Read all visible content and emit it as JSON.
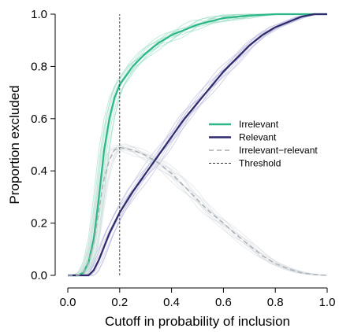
{
  "chart_data": {
    "type": "line",
    "xlabel": "Cutoff in probability of inclusion",
    "ylabel": "Proportion excluded",
    "xlim": [
      0,
      1
    ],
    "ylim": [
      0,
      1
    ],
    "x_ticks": [
      "0.0",
      "0.2",
      "0.4",
      "0.6",
      "0.8",
      "1.0"
    ],
    "y_ticks": [
      "0.0",
      "0.2",
      "0.4",
      "0.6",
      "0.8",
      "1.0"
    ],
    "grid": false,
    "legend_position": "center-right",
    "threshold": 0.2,
    "series": [
      {
        "name": "Irrelevant",
        "style": "solid",
        "color": "#2bb886",
        "x": [
          0.0,
          0.04,
          0.06,
          0.08,
          0.1,
          0.12,
          0.14,
          0.16,
          0.18,
          0.2,
          0.25,
          0.3,
          0.35,
          0.4,
          0.5,
          0.6,
          0.7,
          0.8,
          0.9,
          1.0
        ],
        "y": [
          0.0,
          0.0,
          0.01,
          0.05,
          0.14,
          0.3,
          0.48,
          0.6,
          0.68,
          0.73,
          0.8,
          0.85,
          0.89,
          0.92,
          0.96,
          0.985,
          0.995,
          1.0,
          1.0,
          1.0
        ]
      },
      {
        "name": "Relevant",
        "style": "solid",
        "color": "#2e2a6b",
        "x": [
          0.0,
          0.06,
          0.08,
          0.1,
          0.12,
          0.14,
          0.16,
          0.18,
          0.2,
          0.25,
          0.3,
          0.35,
          0.4,
          0.45,
          0.5,
          0.55,
          0.6,
          0.65,
          0.7,
          0.75,
          0.8,
          0.85,
          0.9,
          0.95,
          1.0
        ],
        "y": [
          0.0,
          0.0,
          0.0,
          0.02,
          0.06,
          0.11,
          0.16,
          0.2,
          0.24,
          0.32,
          0.39,
          0.46,
          0.53,
          0.6,
          0.66,
          0.72,
          0.78,
          0.83,
          0.88,
          0.92,
          0.95,
          0.97,
          0.99,
          1.0,
          1.0
        ]
      },
      {
        "name": "Irrelevant−relevant",
        "style": "dashed",
        "color": "#a8aeb4",
        "x": [
          0.0,
          0.04,
          0.06,
          0.08,
          0.1,
          0.12,
          0.14,
          0.16,
          0.18,
          0.2,
          0.25,
          0.3,
          0.35,
          0.4,
          0.45,
          0.5,
          0.55,
          0.6,
          0.65,
          0.7,
          0.75,
          0.8,
          0.85,
          0.9,
          0.95,
          1.0
        ],
        "y": [
          0.0,
          0.0,
          0.01,
          0.05,
          0.12,
          0.25,
          0.37,
          0.44,
          0.48,
          0.49,
          0.48,
          0.46,
          0.43,
          0.39,
          0.34,
          0.29,
          0.24,
          0.2,
          0.155,
          0.115,
          0.075,
          0.045,
          0.025,
          0.01,
          0.003,
          0.0
        ]
      },
      {
        "name": "Threshold",
        "style": "dotted",
        "color": "#333333",
        "x": [
          0.2,
          0.2
        ],
        "y": [
          0.0,
          1.0
        ]
      }
    ]
  }
}
